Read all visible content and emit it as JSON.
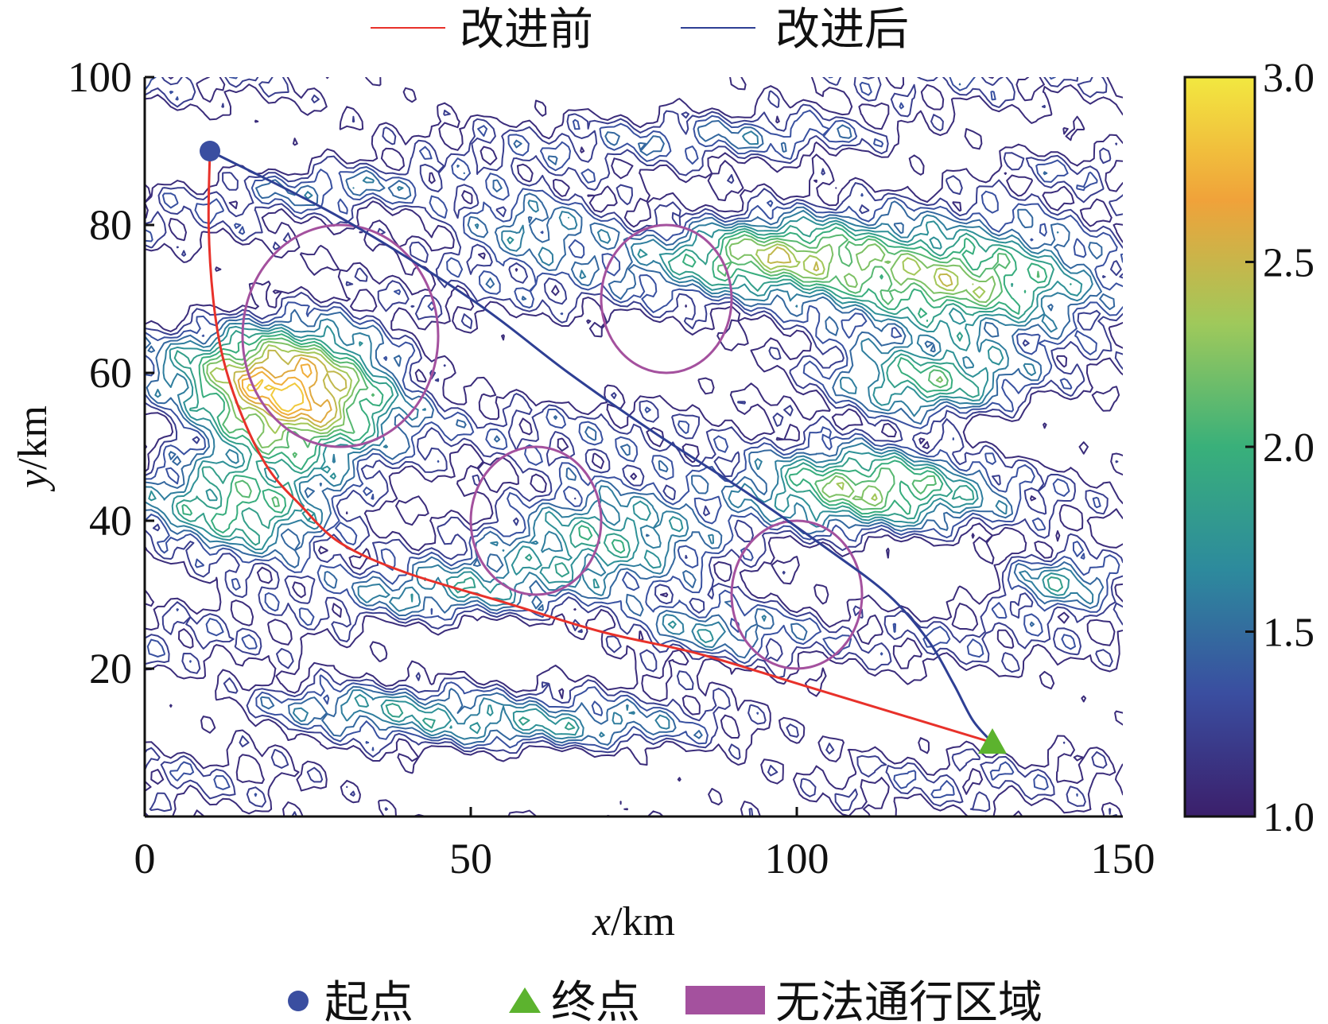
{
  "chart_data": {
    "type": "line",
    "xlabel": "x/km",
    "ylabel": "y/km",
    "xlim": [
      0,
      150
    ],
    "ylim": [
      0,
      100
    ],
    "x_ticks": [
      0,
      50,
      100,
      150
    ],
    "y_ticks": [
      20,
      40,
      60,
      80,
      100
    ],
    "grid": false,
    "legend_top": "top-center",
    "legend_bottom": "bottom-center",
    "series": [
      {
        "name": "改进前",
        "color": "#e8312a",
        "points": [
          [
            10,
            90
          ],
          [
            9.8,
            80
          ],
          [
            10.5,
            70
          ],
          [
            12,
            62
          ],
          [
            15,
            54
          ],
          [
            19,
            47
          ],
          [
            24,
            42
          ],
          [
            30,
            37
          ],
          [
            40,
            33
          ],
          [
            55,
            29
          ],
          [
            70,
            25
          ],
          [
            85,
            22
          ],
          [
            100,
            18
          ],
          [
            115,
            14
          ],
          [
            130,
            10
          ]
        ]
      },
      {
        "name": "改进后",
        "color": "#2e3f94",
        "points": [
          [
            10,
            90
          ],
          [
            30,
            81
          ],
          [
            50,
            70
          ],
          [
            65,
            60
          ],
          [
            78,
            52
          ],
          [
            92,
            44
          ],
          [
            105,
            36
          ],
          [
            114,
            30
          ],
          [
            120,
            24
          ],
          [
            124,
            18
          ],
          [
            127,
            13
          ],
          [
            130,
            10
          ]
        ]
      }
    ],
    "markers": {
      "start": {
        "label": "起点",
        "x": 10,
        "y": 90,
        "color": "#3a4ea0",
        "shape": "circle"
      },
      "end": {
        "label": "终点",
        "x": 130,
        "y": 10,
        "color": "#5cb32e",
        "shape": "triangle"
      }
    },
    "no_pass_zone": {
      "label": "无法通行区域",
      "color": "#a4519e",
      "ellipses": [
        {
          "cx": 30,
          "cy": 65,
          "rx": 15,
          "ry": 15
        },
        {
          "cx": 80,
          "cy": 70,
          "rx": 10,
          "ry": 10
        },
        {
          "cx": 60,
          "cy": 40,
          "rx": 10,
          "ry": 10
        },
        {
          "cx": 100,
          "cy": 30,
          "rx": 10,
          "ry": 10
        }
      ]
    },
    "colorbar": {
      "min": 1.0,
      "max": 3.0,
      "ticks": [
        "1.0",
        "1.5",
        "2.0",
        "2.5",
        "3.0"
      ],
      "colormap": [
        "#3b1f6b",
        "#3a4ea0",
        "#2d8a9d",
        "#39b07a",
        "#9fc95b",
        "#f0a23a",
        "#f2e840"
      ]
    },
    "contour_background": {
      "type": "heatmap",
      "description_levels": [
        1.0,
        1.5,
        2.0,
        2.5,
        3.0
      ]
    }
  }
}
